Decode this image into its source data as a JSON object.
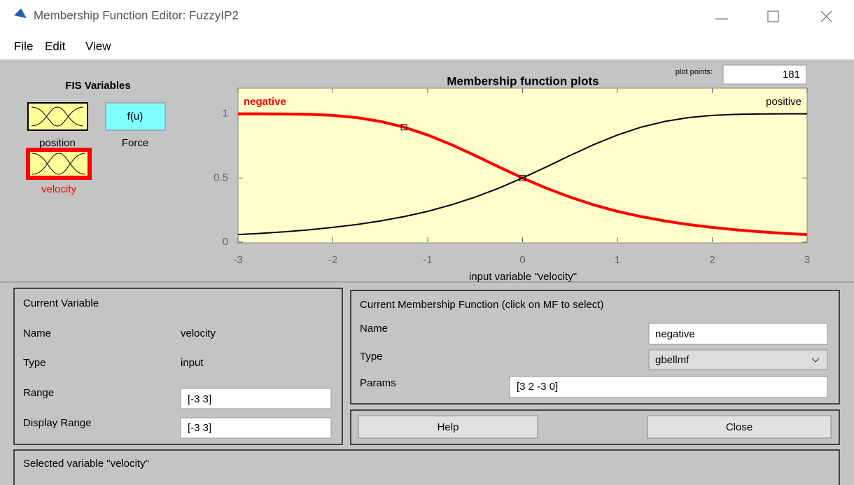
{
  "window": {
    "title": "Membership Function Editor: FuzzyIP2"
  },
  "menu": [
    "File",
    "Edit",
    "View"
  ],
  "fis_variables": {
    "title": "FIS Variables",
    "icon_text": "f(u)",
    "items": [
      "position",
      "Force",
      "velocity"
    ]
  },
  "plot_points": {
    "label": "plot points:",
    "value": "181"
  },
  "chart_data": {
    "type": "line",
    "title": "Membership function plots",
    "xlabel": "input variable \"velocity\"",
    "x": [
      -3,
      -2.75,
      -2.5,
      -2.25,
      -2,
      -1.75,
      -1.5,
      -1.25,
      -1,
      -0.75,
      -0.5,
      -0.25,
      0,
      0.25,
      0.5,
      0.75,
      1,
      1.25,
      1.5,
      1.75,
      2,
      2.25,
      2.5,
      2.75,
      3
    ],
    "series": [
      {
        "name": "negative",
        "color": "#ff0000",
        "values": [
          1,
          1,
          0.999,
          0.996,
          0.988,
          0.971,
          0.941,
          0.896,
          0.835,
          0.76,
          0.675,
          0.586,
          0.5,
          0.421,
          0.351,
          0.291,
          0.24,
          0.199,
          0.165,
          0.137,
          0.115,
          0.096,
          0.081,
          0.069,
          0.059
        ]
      },
      {
        "name": "positive",
        "color": "#000000",
        "values": [
          0.059,
          0.069,
          0.081,
          0.096,
          0.115,
          0.137,
          0.165,
          0.199,
          0.24,
          0.291,
          0.351,
          0.421,
          0.5,
          0.586,
          0.675,
          0.76,
          0.835,
          0.896,
          0.941,
          0.971,
          0.988,
          0.996,
          0.999,
          1,
          1
        ]
      }
    ],
    "xlim": [
      -3,
      3
    ],
    "xticks": [
      -3,
      -2,
      -1,
      0,
      1,
      2,
      3
    ],
    "ylim": [
      0,
      1.2
    ],
    "yticks": [
      0,
      0.5,
      1
    ],
    "grid": false
  },
  "current_variable": {
    "title": "Current Variable",
    "name_label": "Name",
    "name": "velocity",
    "type_label": "Type",
    "type": "input",
    "range_label": "Range",
    "range": "[-3 3]",
    "display_range_label": "Display Range",
    "display_range": "[-3 3]"
  },
  "current_mf": {
    "title": "Current Membership Function (click on MF to select)",
    "name_label": "Name",
    "name": "negative",
    "type_label": "Type",
    "type": "gbellmf",
    "params_label": "Params",
    "params": "[3 2 -3 0]"
  },
  "buttons": [
    "Help",
    "Close"
  ],
  "status": "Selected variable \"velocity\""
}
